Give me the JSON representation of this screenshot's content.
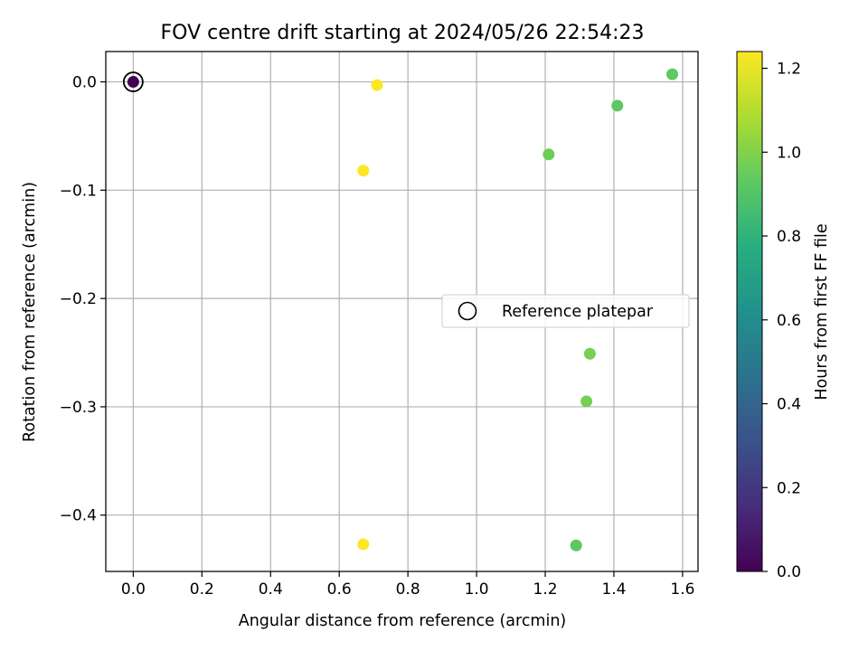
{
  "chart_data": {
    "type": "scatter",
    "title": "FOV centre drift starting at 2024/05/26 22:54:23",
    "xlabel": "Angular distance from reference (arcmin)",
    "ylabel": "Rotation from reference (arcmin)",
    "xlim": [
      -0.08,
      1.645
    ],
    "ylim": [
      -0.452,
      0.028
    ],
    "xticks": [
      0.0,
      0.2,
      0.4,
      0.6,
      0.8,
      1.0,
      1.2,
      1.4,
      1.6
    ],
    "xtick_labels": [
      "0.0",
      "0.2",
      "0.4",
      "0.6",
      "0.8",
      "1.0",
      "1.2",
      "1.4",
      "1.6"
    ],
    "yticks": [
      0.0,
      -0.1,
      -0.2,
      -0.3,
      -0.4
    ],
    "ytick_labels": [
      "0.0",
      "−0.1",
      "−0.2",
      "−0.3",
      "−0.4"
    ],
    "grid": true,
    "colormap": "viridis",
    "colorbar": {
      "label": "Hours from first FF file",
      "range": [
        0.0,
        1.24
      ],
      "ticks": [
        0.0,
        0.2,
        0.4,
        0.6,
        0.8,
        1.0,
        1.2
      ],
      "tick_labels": [
        "0.0",
        "0.2",
        "0.4",
        "0.6",
        "0.8",
        "1.0",
        "1.2"
      ]
    },
    "points": [
      {
        "x": 0.0,
        "y": 0.0,
        "hours": 0.0
      },
      {
        "x": 1.57,
        "y": 0.007,
        "hours": 0.93
      },
      {
        "x": 1.41,
        "y": -0.022,
        "hours": 0.92
      },
      {
        "x": 1.21,
        "y": -0.067,
        "hours": 0.96
      },
      {
        "x": 0.71,
        "y": -0.003,
        "hours": 1.24
      },
      {
        "x": 0.67,
        "y": -0.082,
        "hours": 1.24
      },
      {
        "x": 1.33,
        "y": -0.251,
        "hours": 0.98
      },
      {
        "x": 1.32,
        "y": -0.295,
        "hours": 0.98
      },
      {
        "x": 1.29,
        "y": -0.428,
        "hours": 0.92
      },
      {
        "x": 0.67,
        "y": -0.427,
        "hours": 1.24
      }
    ],
    "reference": {
      "x": 0.0,
      "y": 0.0,
      "label": "Reference platepar"
    },
    "legend_position": "center-right"
  }
}
